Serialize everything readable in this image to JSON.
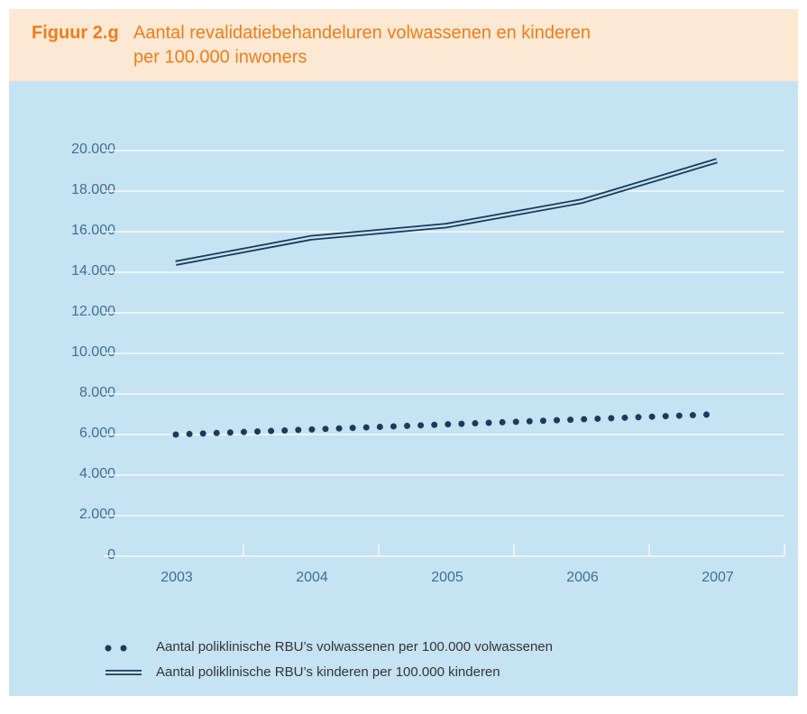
{
  "chart_data": {
    "type": "line",
    "figure_label": "Figuur 2.g",
    "title": "Aantal revalidatiebehandeluren volwassenen en kinderen",
    "subtitle": "per 100.000 inwoners",
    "categories": [
      "2003",
      "2004",
      "2005",
      "2006",
      "2007"
    ],
    "series": [
      {
        "name": "Aantal poliklinische RBU’s volwassenen per 100.000 volwassenen",
        "color": "#1c3a5a",
        "style": "dotted",
        "values": [
          6000,
          6250,
          6500,
          6750,
          7000
        ]
      },
      {
        "name": "Aantal poliklinische RBU’s kinderen per 100.000 kinderen",
        "color": "#1c3a5a",
        "style": "double",
        "values": [
          14450,
          15700,
          16300,
          17500,
          19500
        ]
      }
    ],
    "ylim": [
      0,
      20000
    ],
    "yticks": [
      0,
      {
        "value": 2000,
        "label": "2.000"
      },
      {
        "value": 4000,
        "label": "4.000"
      },
      {
        "value": 6000,
        "label": "6.000"
      },
      {
        "value": 8000,
        "label": "8.000"
      },
      {
        "value": 10000,
        "label": "10.000"
      },
      {
        "value": 12000,
        "label": "12.000"
      },
      {
        "value": 14000,
        "label": "14.000"
      },
      {
        "value": 16000,
        "label": "16.000"
      },
      {
        "value": 18000,
        "label": "18.000"
      },
      {
        "value": 20000,
        "label": "20.000"
      }
    ],
    "grid": true
  }
}
